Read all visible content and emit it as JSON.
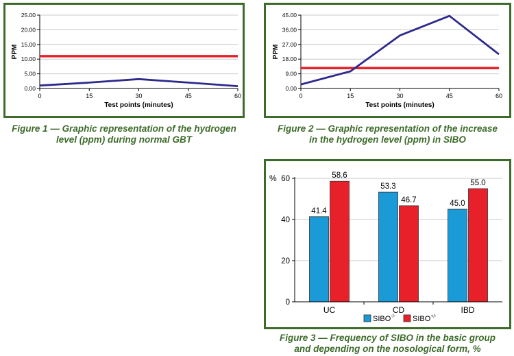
{
  "colors": {
    "frame": "#3d6b2a",
    "line": "#2e2a8c",
    "threshold": "#e8202a",
    "sibo_neg": "#1a9ad6",
    "sibo_pos": "#e8202a",
    "grid": "#c8c8c8"
  },
  "chart_data": [
    {
      "type": "line",
      "caption_l1": "Figure 1 — Graphic representation of the hydrogen",
      "caption_l2": "level (ppm) during normal GBT",
      "xlabel": "Test points (minutes)",
      "ylabel": "PPM",
      "x": [
        0,
        15,
        30,
        45,
        60
      ],
      "y": [
        1.0,
        2.0,
        3.2,
        2.0,
        0.8
      ],
      "threshold": 11,
      "xlim": [
        0,
        60
      ],
      "ylim": [
        0,
        25
      ],
      "xticks": [
        "0",
        "15",
        "30",
        "45",
        "60"
      ],
      "yticks": [
        "0.00",
        "5.00",
        "10.00",
        "15.00",
        "20.00",
        "25.00"
      ],
      "grid": true
    },
    {
      "type": "line",
      "caption_l1": "Figure 2 — Graphic representation of the increase",
      "caption_l2": "in the hydrogen level (ppm) in SIBO",
      "xlabel": "Test points (minutes)",
      "ylabel": "PPM",
      "x": [
        0,
        15,
        30,
        45,
        60
      ],
      "y": [
        2.5,
        10.5,
        32.5,
        44.5,
        21.0
      ],
      "threshold": 12.5,
      "xlim": [
        0,
        60
      ],
      "ylim": [
        0,
        45
      ],
      "xticks": [
        "0",
        "15",
        "30",
        "45",
        "60"
      ],
      "yticks": [
        "0.00",
        "9.00",
        "18.00",
        "27.00",
        "36.00",
        "45.00"
      ],
      "grid": true
    },
    {
      "type": "bar",
      "caption_l1": "Figure 3 — Frequency of SIBO in the basic group",
      "caption_l2": "and depending on the nosological form, %",
      "ylabel": "%",
      "categories": [
        "UC",
        "CD",
        "IBD"
      ],
      "series": [
        {
          "name": "SIBO",
          "sup": "-/-",
          "values": [
            41.4,
            53.3,
            45.0
          ],
          "labels": [
            "41.4",
            "53.3",
            "45.0"
          ]
        },
        {
          "name": "SIBO",
          "sup": "+/-",
          "values": [
            58.6,
            46.7,
            55.0
          ],
          "labels": [
            "58.6",
            "46.7",
            "55.0"
          ]
        }
      ],
      "ylim": [
        0,
        60
      ],
      "yticks": [
        "0",
        "20",
        "40",
        "60"
      ],
      "grid": true,
      "legend": "bottom"
    }
  ]
}
